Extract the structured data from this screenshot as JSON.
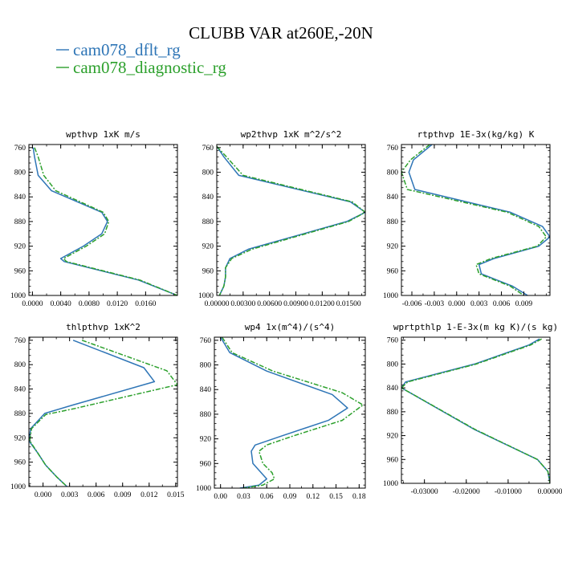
{
  "title": "CLUBB VAR at260E,-20N",
  "legend": [
    {
      "label": "cam078_dflt_rg",
      "color": "#2e75b6"
    },
    {
      "label": "cam078_diagnostic_rg",
      "color": "#2ca02c"
    }
  ],
  "chart_data": [
    {
      "type": "line",
      "title": "wpthvp  1xK m/s",
      "xlim": [
        -0.0005,
        0.0205
      ],
      "ylim": [
        755,
        1000
      ],
      "y_inverted": true,
      "xticks": [
        0.0,
        0.004,
        0.008,
        0.012,
        0.016
      ],
      "xticklabels": [
        "0.0000",
        "0.0040",
        "0.0080",
        "0.0120",
        "0.0160"
      ],
      "yticks": [
        760,
        800,
        840,
        880,
        920,
        960,
        1000
      ],
      "series": [
        {
          "name": "cam078_dflt_rg",
          "x": [
            0.0001,
            0.0003,
            0.0008,
            0.0027,
            0.0098,
            0.0106,
            0.0098,
            0.0072,
            0.004,
            0.0045,
            0.015,
            0.0205
          ],
          "y": [
            760,
            775,
            805,
            830,
            865,
            880,
            900,
            920,
            940,
            945,
            975,
            1000
          ]
        },
        {
          "name": "cam078_diagnostic_rg",
          "x": [
            0.0003,
            0.0008,
            0.0016,
            0.0033,
            0.01,
            0.0108,
            0.0102,
            0.0076,
            0.0044,
            0.0048,
            0.0152,
            0.0205
          ],
          "y": [
            760,
            775,
            805,
            830,
            865,
            880,
            900,
            920,
            940,
            945,
            975,
            1000
          ]
        }
      ]
    },
    {
      "type": "line",
      "title": "wp2thvp  1xK m^2/s^2",
      "xlim": [
        0,
        0.0169
      ],
      "ylim": [
        755,
        1000
      ],
      "y_inverted": true,
      "xticks": [
        0.0,
        0.003,
        0.006,
        0.009,
        0.012,
        0.015
      ],
      "xticklabels": [
        "0.00000",
        "0.00300",
        "0.00600",
        "0.00900",
        "0.01200",
        "0.01500"
      ],
      "yticks": [
        760,
        800,
        840,
        880,
        920,
        960,
        1000
      ],
      "series": [
        {
          "name": "cam078_dflt_rg",
          "x": [
            0.0,
            0.0008,
            0.0025,
            0.0152,
            0.0169,
            0.0148,
            0.0036,
            0.0015,
            0.001,
            0.001,
            0.0008,
            0.0003
          ],
          "y": [
            758,
            775,
            805,
            848,
            865,
            880,
            925,
            940,
            955,
            970,
            985,
            1000
          ]
        },
        {
          "name": "cam078_diagnostic_rg",
          "x": [
            0.0,
            0.0011,
            0.003,
            0.0154,
            0.0169,
            0.015,
            0.004,
            0.0017,
            0.001,
            0.001,
            0.0008,
            0.0003
          ],
          "y": [
            758,
            775,
            805,
            848,
            865,
            880,
            925,
            940,
            955,
            970,
            985,
            1000
          ]
        }
      ]
    },
    {
      "type": "line",
      "title": "rtpthvp  1E-3x(kg/kg) K",
      "xlim": [
        -0.0074,
        0.0125
      ],
      "ylim": [
        755,
        1000
      ],
      "y_inverted": true,
      "xticks": [
        -0.006,
        -0.003,
        0.0,
        0.003,
        0.006,
        0.009
      ],
      "xticklabels": [
        "-0.006",
        "-0.003",
        "0.000",
        "0.003",
        "0.006",
        "0.009"
      ],
      "yticks": [
        760,
        800,
        840,
        880,
        920,
        960,
        1000
      ],
      "series": [
        {
          "name": "cam078_dflt_rg",
          "x": [
            -0.0033,
            -0.0058,
            -0.0064,
            -0.0056,
            0.0072,
            0.0115,
            0.0125,
            0.011,
            0.005,
            0.003,
            0.0033,
            0.0075,
            0.0095
          ],
          "y": [
            755,
            780,
            800,
            828,
            865,
            888,
            905,
            920,
            940,
            950,
            965,
            985,
            1000
          ]
        },
        {
          "name": "cam078_diagnostic_rg",
          "x": [
            -0.0036,
            -0.0062,
            -0.0074,
            -0.0066,
            0.0068,
            0.011,
            0.012,
            0.0108,
            0.0046,
            0.0026,
            0.003,
            0.0072,
            0.009
          ],
          "y": [
            755,
            780,
            800,
            828,
            865,
            888,
            905,
            920,
            940,
            950,
            965,
            985,
            1000
          ]
        }
      ]
    },
    {
      "type": "line",
      "title": "thlpthvp  1xK^2",
      "xlim": [
        -0.0016,
        0.0152
      ],
      "ylim": [
        755,
        1000
      ],
      "y_inverted": true,
      "xticks": [
        0.0,
        0.003,
        0.006,
        0.009,
        0.012,
        0.015
      ],
      "xticklabels": [
        "0.000",
        "0.003",
        "0.006",
        "0.009",
        "0.012",
        "0.015"
      ],
      "yticks": [
        760,
        800,
        840,
        880,
        920,
        960,
        1000
      ],
      "series": [
        {
          "name": "cam078_dflt_rg",
          "x": [
            0.0034,
            0.0114,
            0.0126,
            0.0032,
            0.0002,
            -0.0014,
            -0.0016,
            -0.0006,
            0.0003,
            0.0016,
            0.0027
          ],
          "y": [
            760,
            805,
            828,
            867,
            880,
            905,
            925,
            945,
            965,
            985,
            1000
          ]
        },
        {
          "name": "cam078_diagnostic_rg",
          "x": [
            0.0044,
            0.014,
            0.0152,
            0.0036,
            0.0003,
            -0.0013,
            -0.0015,
            -0.0006,
            0.0003,
            0.0016,
            0.0027
          ],
          "y": [
            760,
            810,
            833,
            872,
            882,
            905,
            925,
            945,
            965,
            985,
            1000
          ]
        }
      ]
    },
    {
      "type": "line",
      "title": "wp4  1x(m^4)/(s^4)",
      "xlim": [
        -0.008,
        0.188
      ],
      "ylim": [
        755,
        1000
      ],
      "y_inverted": true,
      "xticks": [
        0.0,
        0.03,
        0.06,
        0.09,
        0.12,
        0.15,
        0.18
      ],
      "xticklabels": [
        "0.00",
        "0.03",
        "0.06",
        "0.09",
        "0.12",
        "0.15",
        "0.18"
      ],
      "yticks": [
        760,
        800,
        840,
        880,
        920,
        960,
        1000
      ],
      "series": [
        {
          "name": "cam078_dflt_rg",
          "x": [
            0.0,
            0.012,
            0.06,
            0.145,
            0.165,
            0.14,
            0.08,
            0.045,
            0.04,
            0.042,
            0.055,
            0.06,
            0.05,
            0.025
          ],
          "y": [
            755,
            780,
            810,
            848,
            870,
            890,
            915,
            930,
            940,
            960,
            978,
            985,
            995,
            1000
          ]
        },
        {
          "name": "cam078_diagnostic_rg",
          "x": [
            0.002,
            0.015,
            0.068,
            0.158,
            0.185,
            0.158,
            0.095,
            0.06,
            0.05,
            0.055,
            0.067,
            0.07,
            0.055,
            0.03
          ],
          "y": [
            755,
            780,
            810,
            845,
            865,
            890,
            915,
            930,
            940,
            960,
            975,
            985,
            995,
            1000
          ]
        }
      ]
    },
    {
      "type": "line",
      "title": "wprtpthlp  1-E-3x(m kg K)/(s kg)",
      "xlim": [
        -0.0355,
        0.0
      ],
      "ylim": [
        755,
        1000
      ],
      "y_inverted": true,
      "xticks": [
        -0.03,
        -0.02,
        -0.01,
        0.0
      ],
      "xticklabels": [
        "-0.03000",
        "-0.02000",
        "-0.01000",
        "0.00000"
      ],
      "yticks": [
        760,
        800,
        840,
        880,
        920,
        960,
        1000
      ],
      "series": [
        {
          "name": "cam078_dflt_rg",
          "x": [
            -0.0025,
            -0.005,
            -0.018,
            -0.0345,
            -0.0355,
            -0.018,
            -0.003,
            -0.0005,
            0.0
          ],
          "y": [
            758,
            768,
            800,
            830,
            840,
            910,
            960,
            980,
            1000
          ]
        },
        {
          "name": "cam078_diagnostic_rg",
          "x": [
            -0.002,
            -0.0046,
            -0.0176,
            -0.034,
            -0.0355,
            -0.0178,
            -0.003,
            -0.0005,
            0.0
          ],
          "y": [
            758,
            768,
            800,
            830,
            840,
            910,
            960,
            980,
            1000
          ]
        }
      ]
    }
  ]
}
